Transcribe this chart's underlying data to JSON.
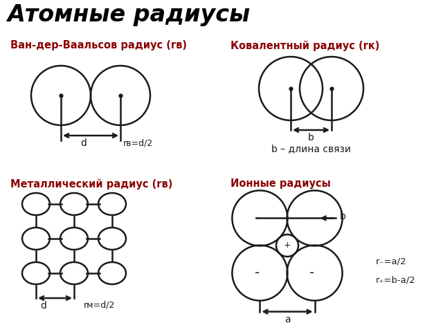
{
  "title": "Атомные радиусы",
  "title_fontsize": 24,
  "bg_color": "#ffffff",
  "label_color": "#8B0000",
  "line_color": "#1a1a1a",
  "lw": 1.8,
  "section_labels": [
    "Ван-дер-Ваальсов радиус (rв)",
    "Ковалентный радиус (rк)",
    "Металлический радиус (rв)",
    "Ионные радиусы"
  ],
  "note_covalent": "b – длина связи",
  "label_d1": "d",
  "label_rv": "rв=d/2",
  "label_b_cov": "b",
  "label_d2": "d",
  "label_rm": "rм=d/2",
  "label_b_ion": "b",
  "label_a": "a",
  "note_r_minus": "r₋=a/2",
  "note_r_plus": "r₊=b-a/2",
  "plus_label": "+",
  "minus_label": "-"
}
